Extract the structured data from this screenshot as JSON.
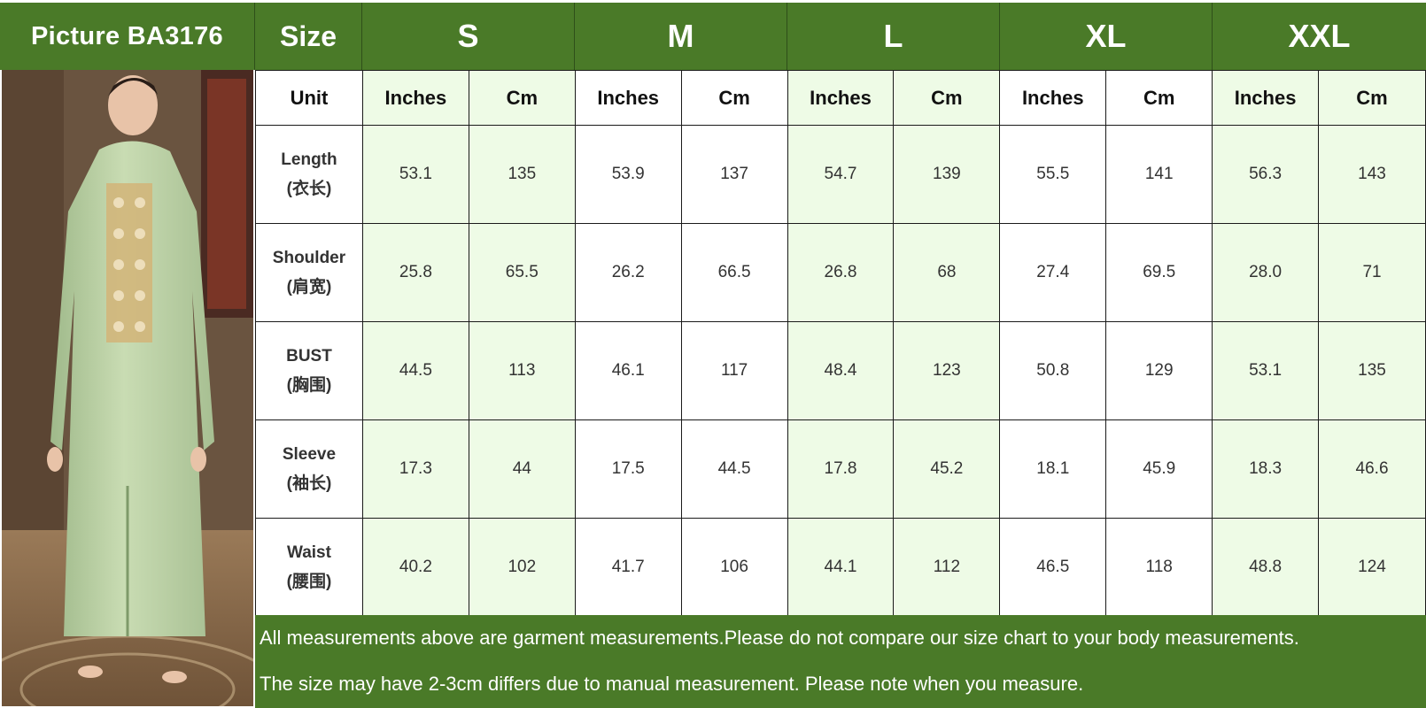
{
  "header": {
    "picture_label": "Picture  BA3176",
    "size_label": "Size",
    "sizes": [
      "S",
      "M",
      "L",
      "XL",
      "XXL"
    ]
  },
  "units": {
    "label": "Unit",
    "columns": [
      "Inches",
      "Cm",
      "Inches",
      "Cm",
      "Inches",
      "Cm",
      "Inches",
      "Cm",
      "Inches",
      "Cm"
    ]
  },
  "rows": [
    {
      "name": "Length",
      "name_cn": "(衣长)",
      "values": [
        "53.1",
        "135",
        "53.9",
        "137",
        "54.7",
        "139",
        "55.5",
        "141",
        "56.3",
        "143"
      ]
    },
    {
      "name": "Shoulder",
      "name_cn": "(肩宽)",
      "values": [
        "25.8",
        "65.5",
        "26.2",
        "66.5",
        "26.8",
        "68",
        "27.4",
        "69.5",
        "28.0",
        "71"
      ]
    },
    {
      "name": "BUST",
      "name_cn": "(胸围)",
      "values": [
        "44.5",
        "113",
        "46.1",
        "117",
        "48.4",
        "123",
        "50.8",
        "129",
        "53.1",
        "135"
      ]
    },
    {
      "name": "Sleeve",
      "name_cn": "(袖长)",
      "values": [
        "17.3",
        "44",
        "17.5",
        "44.5",
        "17.8",
        "45.2",
        "18.1",
        "45.9",
        "18.3",
        "46.6"
      ]
    },
    {
      "name": "Waist",
      "name_cn": "(腰围)",
      "values": [
        "40.2",
        "102",
        "41.7",
        "106",
        "44.1",
        "112",
        "46.5",
        "118",
        "48.8",
        "124"
      ]
    }
  ],
  "footer": {
    "line1": "All measurements above are garment measurements.Please do not compare our size chart to your body measurements.",
    "line2": "The size may have 2-3cm differs due to manual measurement. Please note when you measure."
  },
  "colors": {
    "header_green": "#4a7a28",
    "light_green": "#eefbe6"
  }
}
